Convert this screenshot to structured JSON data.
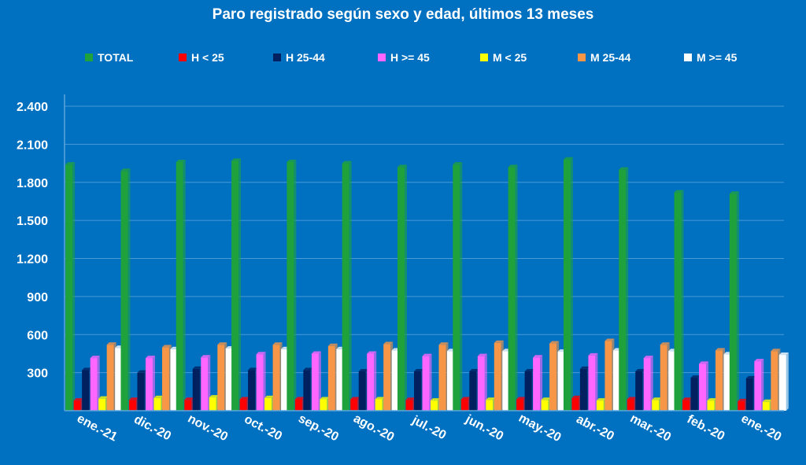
{
  "chart_data": {
    "type": "bar",
    "title": "Paro registrado según sexo y edad, últimos 13 meses",
    "xlabel": "",
    "ylabel": "",
    "ylim": [
      0,
      2400
    ],
    "yticks": [
      300,
      600,
      900,
      1200,
      1500,
      1800,
      2100,
      2400
    ],
    "ytick_labels": [
      "300",
      "600",
      "900",
      "1.200",
      "1.500",
      "1.800",
      "2.100",
      "2.400"
    ],
    "grid": true,
    "legend_position": "top",
    "categories": [
      "ene.-21",
      "dic.-20",
      "nov.-20",
      "oct.-20",
      "sep.-20",
      "ago.-20",
      "jul.-20",
      "jun.-20",
      "may.-20",
      "abr.-20",
      "mar.-20",
      "feb.-20",
      "ene.-20"
    ],
    "series": [
      {
        "name": "TOTAL",
        "color": "#1FA23C",
        "values": [
          1940,
          1890,
          1960,
          1970,
          1960,
          1950,
          1920,
          1940,
          1920,
          1980,
          1900,
          1720,
          1710
        ]
      },
      {
        "name": "H < 25",
        "color": "#FF0000",
        "values": [
          80,
          85,
          85,
          90,
          90,
          90,
          85,
          90,
          90,
          100,
          90,
          85,
          75
        ]
      },
      {
        "name": "H 25-44",
        "color": "#002060",
        "values": [
          320,
          300,
          330,
          320,
          320,
          310,
          310,
          310,
          310,
          330,
          310,
          260,
          255
        ]
      },
      {
        "name": "H >= 45",
        "color": "#FF66FF",
        "values": [
          415,
          415,
          420,
          445,
          450,
          450,
          430,
          430,
          420,
          435,
          415,
          370,
          390
        ]
      },
      {
        "name": "M < 25",
        "color": "#FFFF00",
        "values": [
          95,
          100,
          105,
          100,
          90,
          90,
          80,
          85,
          85,
          80,
          85,
          80,
          70
        ]
      },
      {
        "name": "M 25-44",
        "color": "#F79646",
        "values": [
          520,
          500,
          520,
          520,
          510,
          525,
          520,
          535,
          530,
          550,
          520,
          475,
          470
        ]
      },
      {
        "name": "M >= 45",
        "color": "#FFFFFF",
        "values": [
          495,
          485,
          490,
          485,
          485,
          475,
          470,
          470,
          465,
          475,
          470,
          445,
          440
        ]
      }
    ]
  }
}
